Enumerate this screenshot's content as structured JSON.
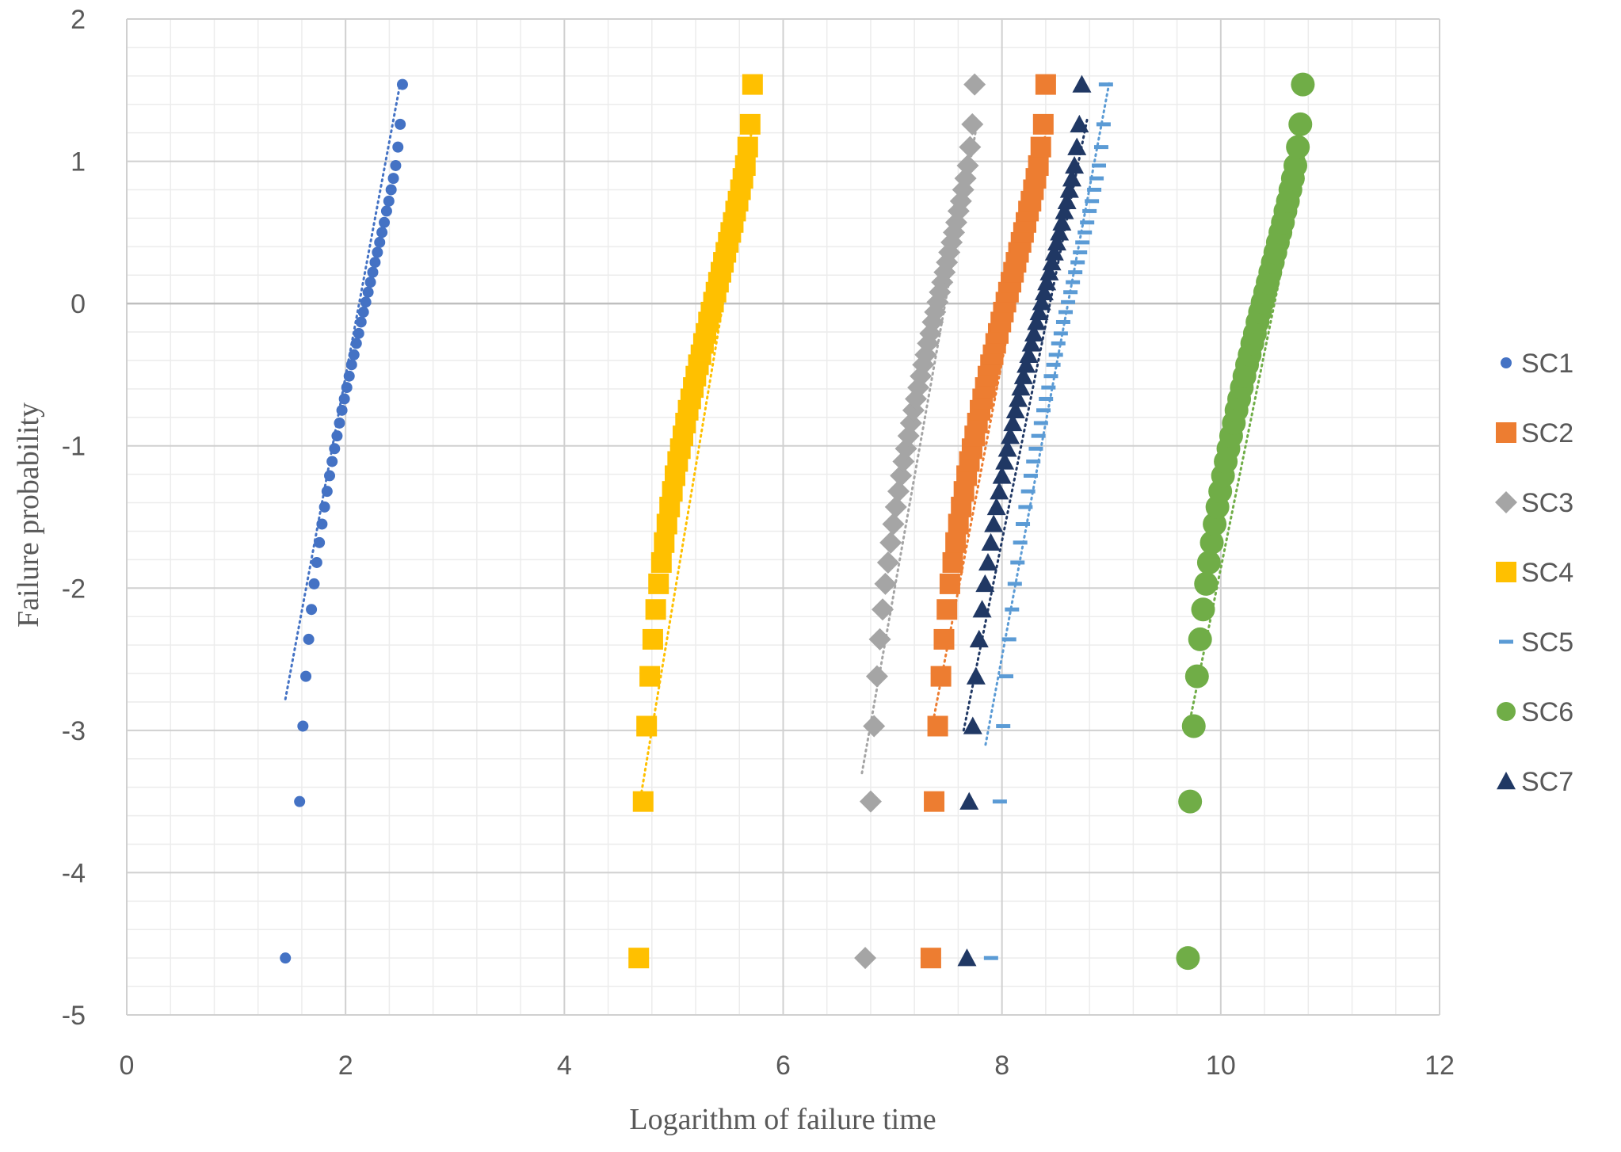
{
  "chart_data": {
    "type": "scatter",
    "title": "",
    "xlabel": "Logarithm of failure time",
    "ylabel": "Failure probability",
    "xlim": [
      0,
      12
    ],
    "ylim": [
      -5,
      2
    ],
    "x_ticks": [
      0,
      2,
      4,
      6,
      8,
      10,
      12
    ],
    "y_ticks": [
      2,
      1,
      0,
      -1,
      -2,
      -3,
      -4,
      -5
    ],
    "x_tick_labels": [
      "0",
      "2",
      "4",
      "6",
      "8",
      "10",
      "12"
    ],
    "y_tick_labels": [
      "2",
      "1",
      "0",
      "-1",
      "-2",
      "-3",
      "-4",
      "-5"
    ],
    "grid": "major and minor",
    "legend_position": "right",
    "y_levels": [
      -4.6,
      -3.5,
      -2.97,
      -2.62,
      -2.36,
      -2.15,
      -1.97,
      -1.82,
      -1.68,
      -1.55,
      -1.43,
      -1.32,
      -1.21,
      -1.11,
      -1.02,
      -0.93,
      -0.84,
      -0.75,
      -0.67,
      -0.59,
      -0.51,
      -0.43,
      -0.36,
      -0.28,
      -0.21,
      -0.13,
      -0.06,
      0.01,
      0.08,
      0.15,
      0.22,
      0.29,
      0.36,
      0.43,
      0.5,
      0.57,
      0.65,
      0.72,
      0.8,
      0.88,
      0.97,
      1.1,
      1.26,
      1.54
    ],
    "series": [
      {
        "name": "SC1",
        "color": "#4472C4",
        "marker": "circle",
        "min": 1.45,
        "lo": 1.58,
        "hi": 2.52,
        "fit_lo": 1.45,
        "fit_hi": 2.5,
        "fit_ylo": -2.78,
        "fit_yhi": 1.55
      },
      {
        "name": "SC2",
        "color": "#ED7D31",
        "marker": "square",
        "min": 7.35,
        "lo": 7.38,
        "hi": 8.4,
        "fit_lo": 7.38,
        "fit_hi": 8.42,
        "fit_ylo": -2.9,
        "fit_yhi": 1.28
      },
      {
        "name": "SC3",
        "color": "#A5A5A5",
        "marker": "diamond",
        "min": 6.75,
        "lo": 6.8,
        "hi": 7.75,
        "fit_lo": 6.72,
        "fit_hi": 7.78,
        "fit_ylo": -3.3,
        "fit_yhi": 1.3
      },
      {
        "name": "SC4",
        "color": "#FFC000",
        "marker": "square",
        "min": 4.68,
        "lo": 4.72,
        "hi": 5.72,
        "fit_lo": 4.68,
        "fit_hi": 5.72,
        "fit_ylo": -3.55,
        "fit_yhi": 1.25
      },
      {
        "name": "SC5",
        "color": "#5B9BD5",
        "marker": "dash",
        "min": 7.9,
        "lo": 7.98,
        "hi": 8.95,
        "fit_lo": 7.85,
        "fit_hi": 8.98,
        "fit_ylo": -3.1,
        "fit_yhi": 1.55
      },
      {
        "name": "SC6",
        "color": "#70AD47",
        "marker": "circle-large",
        "min": 9.7,
        "lo": 9.72,
        "hi": 10.75,
        "fit_lo": 9.7,
        "fit_hi": 10.78,
        "fit_ylo": -3.0,
        "fit_yhi": 1.1
      },
      {
        "name": "SC7",
        "color": "#203864",
        "marker": "triangle",
        "min": 7.68,
        "lo": 7.7,
        "hi": 8.73,
        "fit_lo": 7.65,
        "fit_hi": 8.78,
        "fit_ylo": -3.0,
        "fit_yhi": 1.3
      }
    ]
  }
}
